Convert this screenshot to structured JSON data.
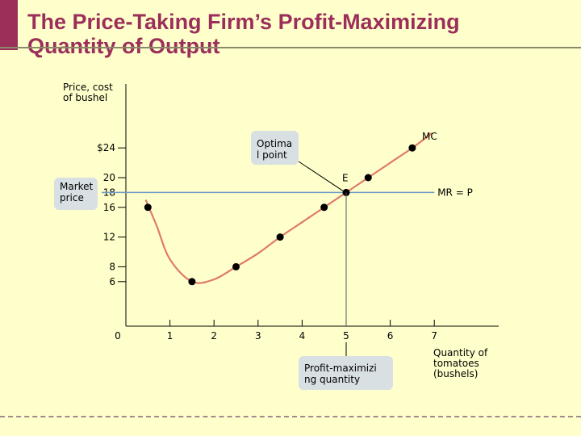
{
  "header": {
    "title_line1": "The Price-Taking Firm’s Profit-Maximizing",
    "title_line2": "Quantity of Output"
  },
  "colors": {
    "title": "#9b2f5a",
    "mc_curve": "#e07a6a",
    "mr_line": "#6a9ac8",
    "background": "#ffffcc",
    "callout_fill": "#d9e0e3"
  },
  "callouts": {
    "market_price": "Market\nprice",
    "optimal_point": "Optima\nl point",
    "profit_max_quantity": "Profit-maximizi\nng quantity"
  },
  "chart_data": {
    "type": "line",
    "ylabel": "Price, cost\nof bushel",
    "xlabel": "Quantity of\ntomatoes\n(bushels)",
    "xlim": [
      0,
      8.7
    ],
    "ylim": [
      0,
      26
    ],
    "x_ticks": [
      "0",
      "1",
      "2",
      "3",
      "4",
      "5",
      "6",
      "7"
    ],
    "y_ticks": [
      {
        "value": 24,
        "label": "$24"
      },
      {
        "value": 20,
        "label": "20"
      },
      {
        "value": 18,
        "label": "18"
      },
      {
        "value": 16,
        "label": "16"
      },
      {
        "value": 12,
        "label": "12"
      },
      {
        "value": 8,
        "label": "8"
      },
      {
        "value": 6,
        "label": "6"
      }
    ],
    "series": [
      {
        "name": "MC",
        "curve": [
          [
            0.45,
            17
          ],
          [
            0.7,
            13.5
          ],
          [
            1.0,
            9
          ],
          [
            1.5,
            6
          ],
          [
            2.0,
            6.3
          ],
          [
            2.5,
            8
          ],
          [
            3.0,
            9.8
          ],
          [
            3.5,
            12
          ],
          [
            4.0,
            14
          ],
          [
            4.5,
            16
          ],
          [
            5.0,
            18
          ],
          [
            5.5,
            20
          ],
          [
            6.0,
            22
          ],
          [
            6.5,
            24
          ],
          [
            6.95,
            26
          ]
        ],
        "points": [
          [
            0.5,
            16
          ],
          [
            1.5,
            6
          ],
          [
            2.5,
            8
          ],
          [
            3.5,
            12
          ],
          [
            4.5,
            16
          ],
          [
            5.0,
            18
          ],
          [
            5.5,
            20
          ],
          [
            6.5,
            24
          ]
        ]
      },
      {
        "name": "MR = P",
        "y": 18,
        "x_range": [
          0,
          7
        ]
      }
    ],
    "annotations": [
      {
        "label": "E",
        "x": 5,
        "y": 18
      }
    ],
    "grid": false
  }
}
